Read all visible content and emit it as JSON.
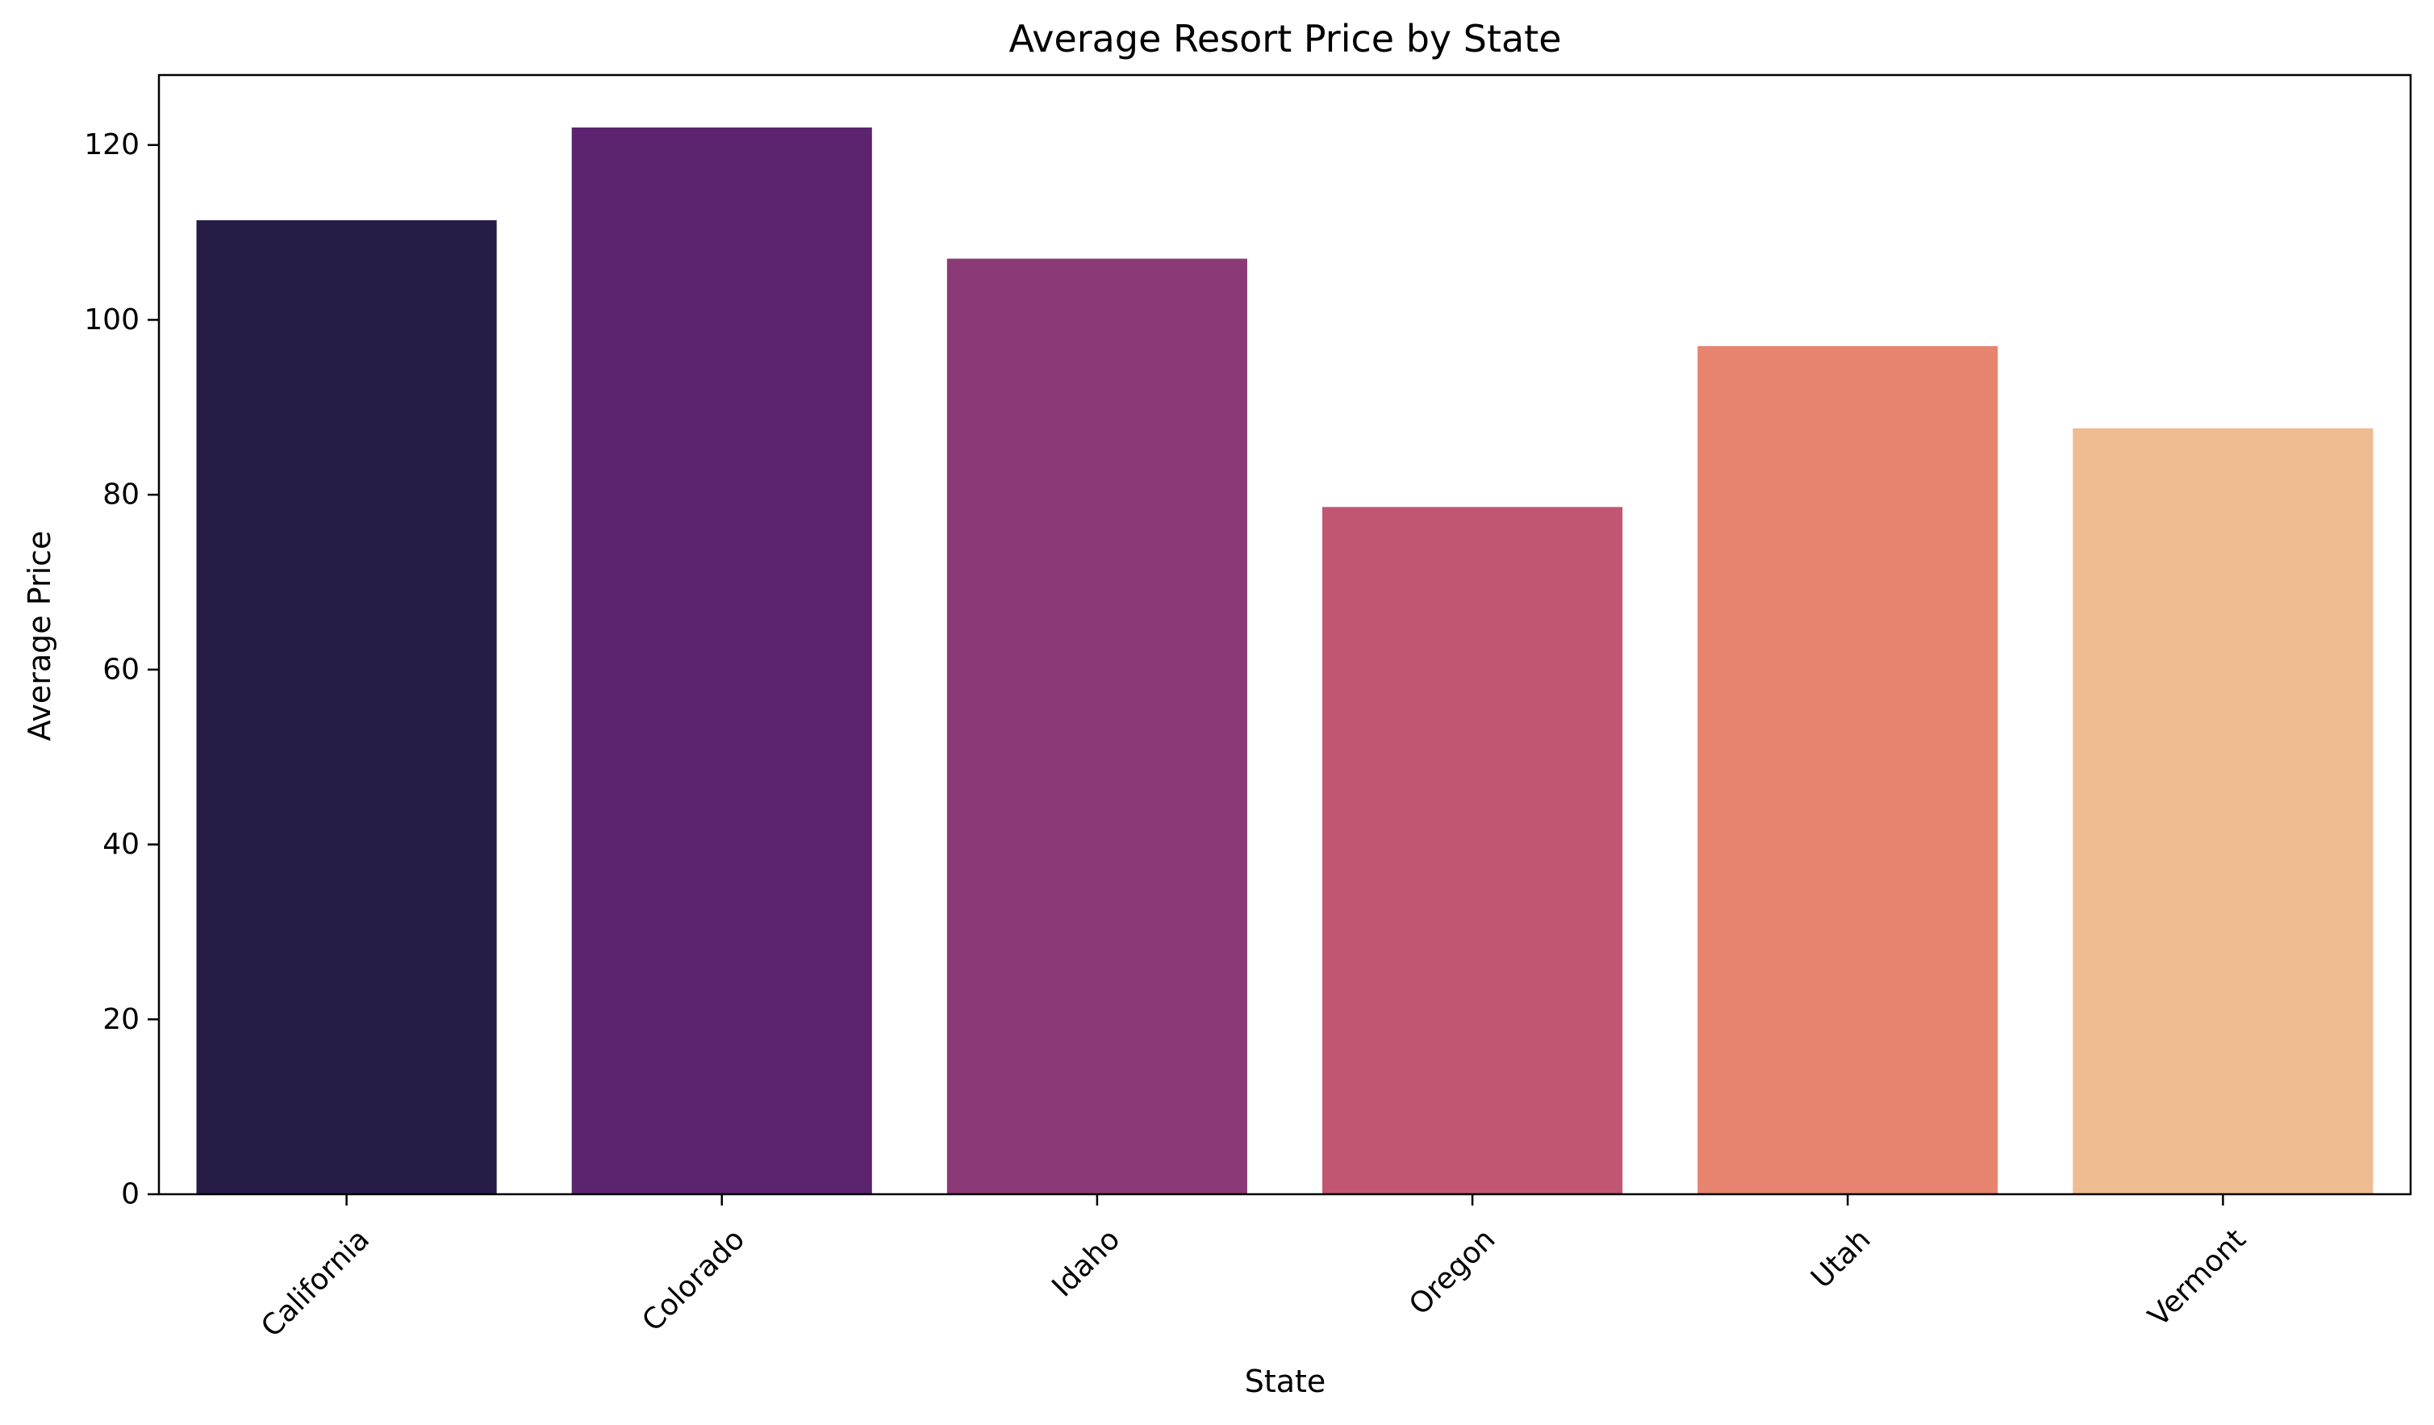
{
  "chart_data": {
    "type": "bar",
    "title": "Average Resort Price by State",
    "xlabel": "State",
    "ylabel": "Average Price",
    "categories": [
      "California",
      "Colorado",
      "Idaho",
      "Oregon",
      "Utah",
      "Vermont"
    ],
    "values": [
      111.4,
      122.0,
      107.0,
      78.6,
      97.0,
      87.6
    ],
    "colors": [
      "#261c45",
      "#5c246f",
      "#8b3a77",
      "#c15673",
      "#e68470",
      "#efbb90"
    ],
    "ylim": [
      0,
      128
    ],
    "yticks": [
      0,
      20,
      40,
      60,
      80,
      100,
      120
    ],
    "ytick_labels": [
      "0",
      "20",
      "40",
      "60",
      "80",
      "100",
      "120"
    ],
    "grid": false,
    "legend": "none"
  }
}
